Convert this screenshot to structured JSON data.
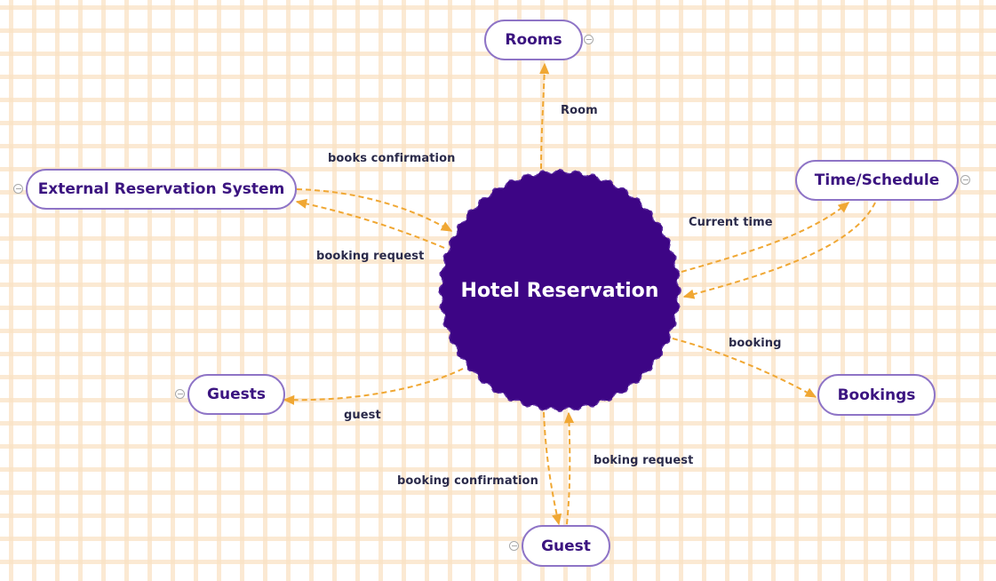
{
  "diagram": {
    "central": {
      "label": "Hotel Reservation",
      "fill_color": "#3d0585"
    },
    "node_border_color": "#8e74c6",
    "node_text_color": "#3b1480",
    "edge_color": "#f0a733",
    "nodes": {
      "rooms": "Rooms",
      "time_schedule": "Time/Schedule",
      "external_reservation_system": "External Reservation System",
      "guests": "Guests",
      "bookings": "Bookings",
      "guest": "Guest"
    },
    "edges": {
      "room": "Room",
      "books_confirmation": "books confirmation",
      "booking_request": "booking request",
      "current_time": "Current time",
      "booking": "booking",
      "guest": "guest",
      "boking_request": "boking request",
      "booking_confirmation": "booking confirmation"
    }
  }
}
